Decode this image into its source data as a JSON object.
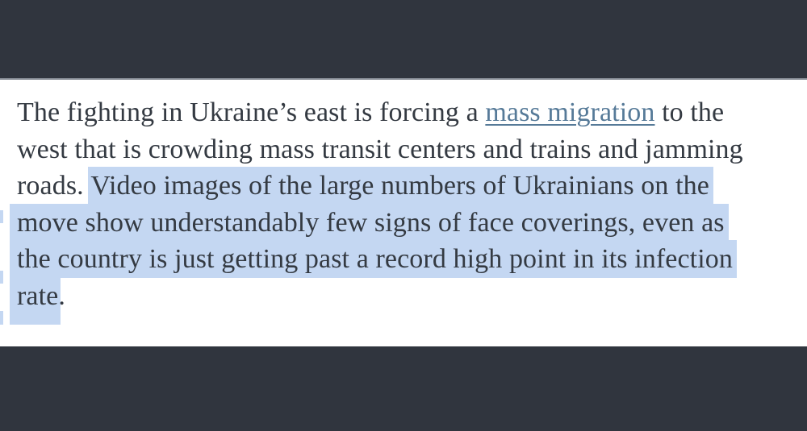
{
  "page": {
    "background": "#ffffff",
    "top_bar_color": "#30353e",
    "bottom_bar_color": "#30353e",
    "separator_color": "#878d96"
  },
  "article": {
    "colors": {
      "text": "#343a42",
      "link": "#567a98",
      "selection_highlight": "#c4d7f2"
    },
    "link_text": "mass migration",
    "selected_text": "Video images of the large numbers of Ukrainians on the move show understandably few signs of face coverings, even as the country is just getting past a record high point in its infection rate",
    "full_text": "The fighting in Ukraine’s east is forcing a mass migration to the west that is crowding mass transit centers and trains and jamming roads. Video images of the large numbers of Ukrainians on the move show understandably few signs of face coverings, even as the country is just getting past a record high point in its infection rate.",
    "lines": [
      {
        "segments": [
          {
            "type": "text",
            "text": "The fighting in Ukraine’s east is forcing a "
          },
          {
            "type": "link",
            "text": "mass migration"
          },
          {
            "type": "text",
            "text": " to the"
          }
        ]
      },
      {
        "segments": [
          {
            "type": "text",
            "text": "west that is crowding mass transit centers and trains and jamming"
          }
        ]
      },
      {
        "segments": [
          {
            "type": "text",
            "text": "roads. "
          },
          {
            "type": "highlight",
            "text": "Video images of the large numbers of Ukrainians on the"
          }
        ]
      },
      {
        "segments": [
          {
            "type": "highlight",
            "text": "move show understandably few signs of face coverings, even as"
          }
        ]
      },
      {
        "segments": [
          {
            "type": "highlight",
            "text": "the country is just getting past a record high point in its infection"
          }
        ]
      },
      {
        "segments": [
          {
            "type": "highlight",
            "text": "rate"
          },
          {
            "type": "text",
            "text": "."
          }
        ]
      }
    ]
  }
}
